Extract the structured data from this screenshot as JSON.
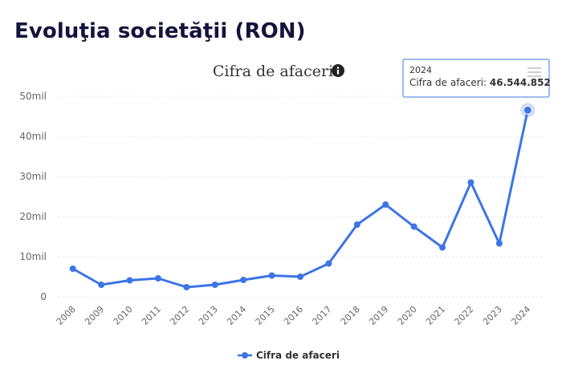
{
  "section_title": "Evoluţia societăţii (RON)",
  "chart_data": {
    "type": "line",
    "title": "Cifra de afaceri",
    "title_icon": "info-icon",
    "color": "#3d74e6",
    "categories": [
      "2008",
      "2009",
      "2010",
      "2011",
      "2012",
      "2013",
      "2014",
      "2015",
      "2016",
      "2017",
      "2018",
      "2019",
      "2020",
      "2021",
      "2022",
      "2023",
      "2024"
    ],
    "series": [
      {
        "name": "Cifra de afaceri",
        "values": [
          7000000,
          3000000,
          4100000,
          4600000,
          2400000,
          3000000,
          4200000,
          5300000,
          5000000,
          8300000,
          18000000,
          23000000,
          17500000,
          12300000,
          28500000,
          13300000,
          46544852
        ]
      }
    ],
    "ylim": [
      0,
      50000000
    ],
    "yticks": [
      0,
      10000000,
      20000000,
      30000000,
      40000000,
      50000000
    ],
    "ytick_labels": [
      "0",
      "10mil",
      "20mil",
      "30mil",
      "40mil",
      "50mil"
    ],
    "grid": true,
    "legend": "bottom-center",
    "tooltip": {
      "year": "2024",
      "label": "Cifra de afaceri:",
      "value": "46.544.852"
    },
    "menu_icon": "hamburger-menu-icon"
  }
}
